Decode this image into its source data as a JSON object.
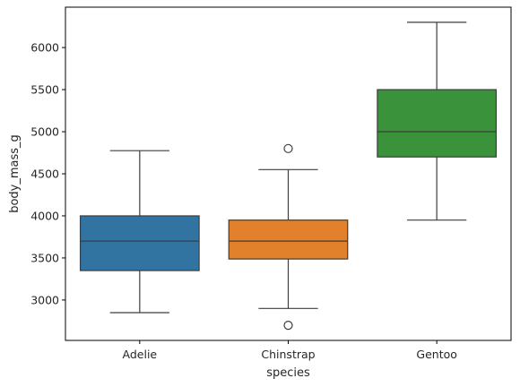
{
  "chart_data": {
    "type": "box",
    "title": "",
    "xlabel": "species",
    "ylabel": "body_mass_g",
    "ylim": [
      2520,
      6480
    ],
    "yticks": [
      3000,
      3500,
      4000,
      4500,
      5000,
      5500,
      6000
    ],
    "ytick_labels": [
      "3000",
      "3500",
      "4000",
      "4500",
      "5000",
      "5500",
      "6000"
    ],
    "grid": false,
    "legend": "none",
    "categories": [
      "Adelie",
      "Chinstrap",
      "Gentoo"
    ],
    "series": [
      {
        "category": "Adelie",
        "color": "#3274a1",
        "whisker_low": 2850,
        "q1": 3350,
        "median": 3700,
        "q3": 4000,
        "whisker_high": 4775,
        "outliers": []
      },
      {
        "category": "Chinstrap",
        "color": "#e1812c",
        "whisker_low": 2900,
        "q1": 3487.5,
        "median": 3700,
        "q3": 3950,
        "whisker_high": 4550,
        "outliers": [
          2700,
          4800
        ]
      },
      {
        "category": "Gentoo",
        "color": "#3a923a",
        "whisker_low": 3950,
        "q1": 4700,
        "median": 5000,
        "q3": 5500,
        "whisker_high": 6300,
        "outliers": []
      }
    ],
    "line_color": "#3d3d3d"
  }
}
